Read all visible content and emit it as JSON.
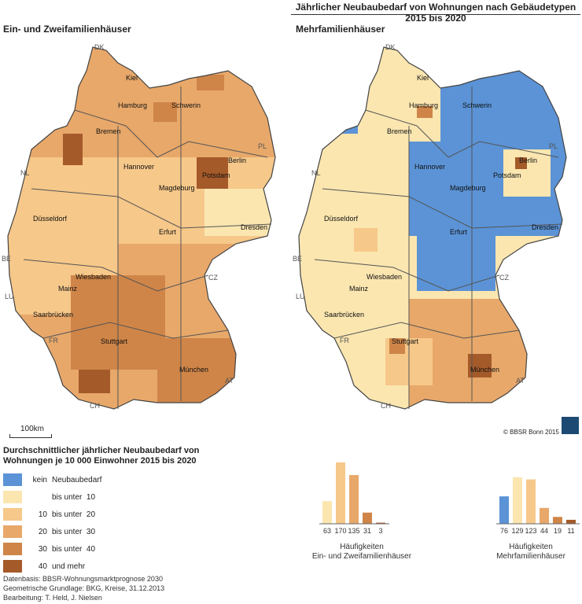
{
  "title": "Jährlicher Neubaubedarf von Wohnungen nach Gebäudetypen 2015 bis 2020",
  "maps": {
    "left_title": "Ein- und Zweifamilienhäuser",
    "right_title": "Mehrfamilienhäuser",
    "cities": [
      "Kiel",
      "Hamburg",
      "Schwerin",
      "Bremen",
      "Berlin",
      "Hannover",
      "Potsdam",
      "Magdeburg",
      "Düsseldorf",
      "Dresden",
      "Erfurt",
      "Wiesbaden",
      "Mainz",
      "Saarbrücken",
      "Stuttgart",
      "München"
    ],
    "countries": [
      "DK",
      "PL",
      "NL",
      "BE",
      "LU",
      "FR",
      "CH",
      "AT",
      "CZ"
    ]
  },
  "scale": "100km",
  "copyright": "© BBSR Bonn 2015",
  "legend": {
    "title": "Durchschnittlicher jährlicher Neubaubedarf von Wohnungen je 10 000 Einwohner 2015 bis 2020",
    "classes": [
      {
        "low": "kein",
        "label": "Neubaubedarf",
        "color": "#5b93d6"
      },
      {
        "low": "",
        "label": "bis unter  10",
        "color": "#fbe6b0"
      },
      {
        "low": "10",
        "label": "bis unter  20",
        "color": "#f6c88a"
      },
      {
        "low": "20",
        "label": "bis unter  30",
        "color": "#e8a86a"
      },
      {
        "low": "30",
        "label": "bis unter  40",
        "color": "#cf8548"
      },
      {
        "low": "40",
        "label": "und mehr",
        "color": "#a55a2a"
      }
    ]
  },
  "histograms": {
    "ein_zwei": {
      "values": [
        63,
        170,
        135,
        31,
        3
      ],
      "caption_line1": "Häufigkeiten",
      "caption_line2": "Ein- und Zweifamilienhäuser"
    },
    "mehr": {
      "values": [
        76,
        129,
        123,
        44,
        19,
        11
      ],
      "caption_line1": "Häufigkeiten",
      "caption_line2": "Mehrfamilienhäuser"
    }
  },
  "footer": {
    "line1": "Datenbasis: BBSR-Wohnungsmarktprognose 2030",
    "line2": "Geometrische Grundlage: BKG, Kreise, 31.12.2013",
    "line3": "Bearbeitung:  T. Held, J. Nielsen"
  }
}
